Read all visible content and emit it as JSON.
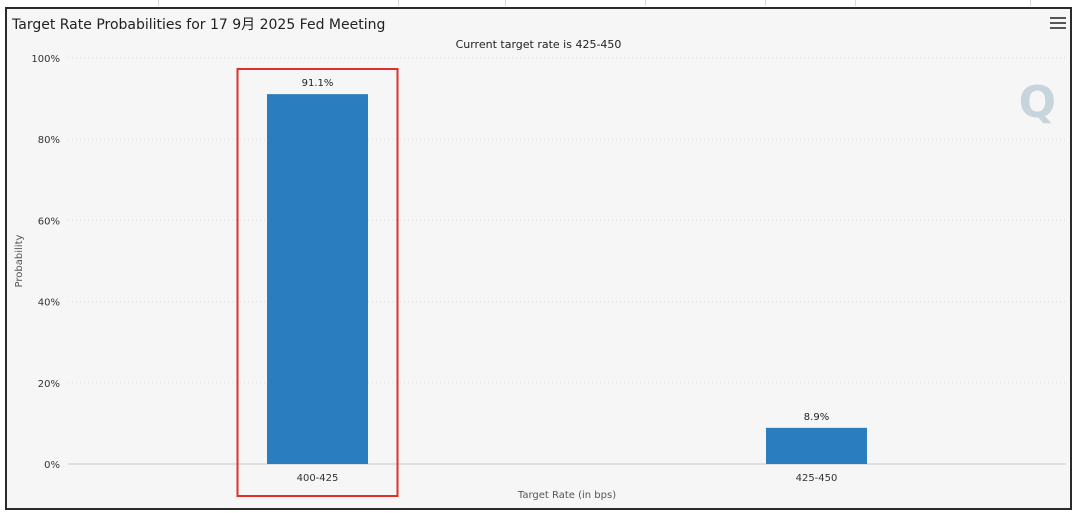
{
  "chart_data": {
    "type": "bar",
    "title": "Target Rate Probabilities for 17 9月 2025 Fed Meeting",
    "subtitle": "Current target rate is 425-450",
    "xlabel": "Target Rate (in bps)",
    "ylabel": "Probability",
    "categories": [
      "400-425",
      "425-450"
    ],
    "values": [
      91.1,
      8.9
    ],
    "data_labels": [
      "91.1%",
      "8.9%"
    ],
    "ylim": [
      0,
      100
    ],
    "yticks": [
      "0%",
      "20%",
      "40%",
      "60%",
      "80%",
      "100%"
    ],
    "grid": true,
    "bar_color": "#2a7ec0",
    "highlight": {
      "category": "400-425",
      "color": "#e0302a"
    }
  },
  "toolbar": {
    "menu_icon": "hamburger-menu-icon"
  },
  "watermark": "Q"
}
